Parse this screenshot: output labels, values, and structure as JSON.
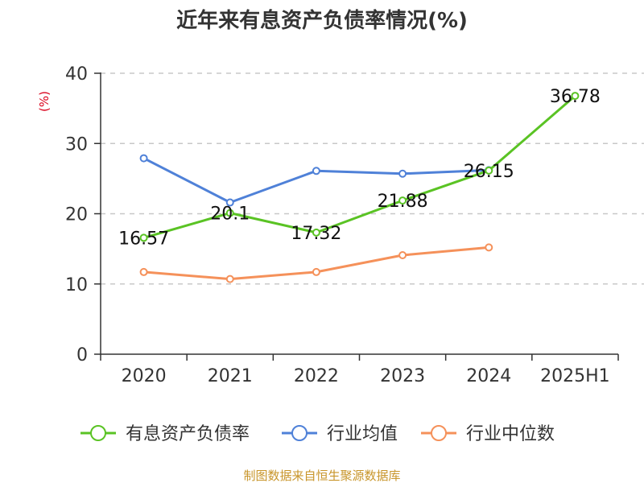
{
  "chart_data": {
    "type": "line",
    "title": "近年来有息资产负债率情况(%)",
    "ylabel": "(%)",
    "xlabel": "",
    "categories": [
      "2020",
      "2021",
      "2022",
      "2023",
      "2024",
      "2025H1"
    ],
    "ylim": [
      0,
      40
    ],
    "yticks": [
      0,
      10,
      20,
      30,
      40
    ],
    "grid": true,
    "legend_position": "bottom",
    "series": [
      {
        "name": "有息资产负债率",
        "color": "#5ac324",
        "values": [
          16.57,
          20.1,
          17.32,
          21.88,
          26.15,
          36.78
        ],
        "labels": [
          "16.57",
          "20.1",
          "17.32",
          "21.88",
          "26.15",
          "36.78"
        ]
      },
      {
        "name": "行业均值",
        "color": "#4f81d8",
        "values": [
          27.9,
          21.6,
          26.1,
          25.7,
          26.2,
          null
        ]
      },
      {
        "name": "行业中位数",
        "color": "#f5915a",
        "values": [
          11.7,
          10.7,
          11.7,
          14.1,
          15.2,
          null
        ]
      }
    ]
  },
  "source": "制图数据来自恒生聚源数据库"
}
